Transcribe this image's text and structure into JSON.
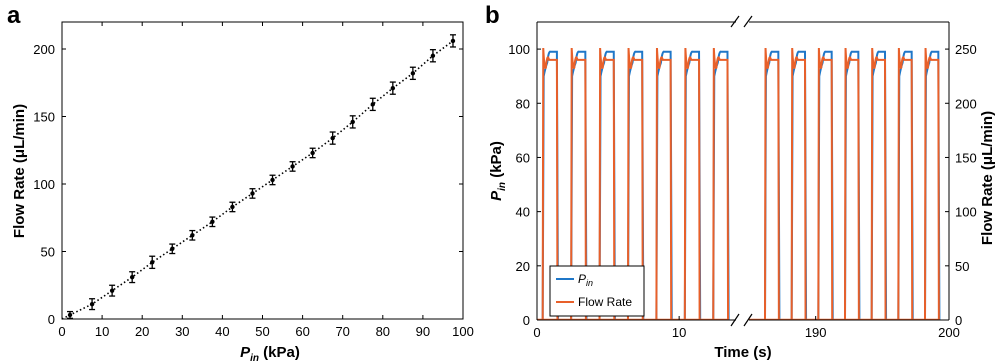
{
  "chart_data": [
    {
      "panel_label": "a",
      "type": "scatter",
      "xlabel_main": "P",
      "xlabel_sub": "in",
      "xlabel_unit": " (kPa)",
      "ylabel": "Flow Rate (μL/min)",
      "xlim": [
        0,
        100
      ],
      "ylim": [
        0,
        220
      ],
      "xticks": [
        0,
        10,
        20,
        30,
        40,
        50,
        60,
        70,
        80,
        90,
        100
      ],
      "yticks": [
        0,
        50,
        100,
        150,
        200
      ],
      "x": [
        2,
        7.5,
        12.5,
        17.5,
        22.5,
        27.5,
        32.5,
        37.5,
        42.5,
        47.5,
        52.5,
        57.5,
        62.5,
        67.5,
        72.5,
        77.5,
        82.5,
        87.5,
        92.5,
        97.5
      ],
      "y": [
        3,
        11,
        21,
        31,
        42,
        52,
        62,
        72,
        83,
        93,
        103,
        113,
        123,
        134,
        146,
        159,
        171,
        182,
        195,
        206
      ],
      "err": [
        2.5,
        4,
        4,
        4,
        4.5,
        3.5,
        3.5,
        3.5,
        3.5,
        3.5,
        3.5,
        3.5,
        3.5,
        4.5,
        4.5,
        4.5,
        4.5,
        4.5,
        4.5,
        4.5
      ],
      "fit_line": "dotted",
      "grid": false
    },
    {
      "panel_label": "b",
      "type": "line",
      "xlabel": "Time (s)",
      "ylabel_left_main": "P",
      "ylabel_left_sub": "in",
      "ylabel_left_unit": " (kPa)",
      "ylabel_right": "Flow Rate (μL/min)",
      "xticks": [
        "0",
        "10",
        "190",
        "200"
      ],
      "broken_axis": {
        "left_segment": [
          0,
          14
        ],
        "right_segment": [
          185,
          200
        ]
      },
      "ylim_left": [
        0,
        110
      ],
      "ylim_right": [
        0,
        275
      ],
      "yticks_left": [
        0,
        20,
        40,
        60,
        80,
        100
      ],
      "yticks_right": [
        0,
        50,
        100,
        150,
        200,
        250
      ],
      "pulse_starts_left": [
        0.4,
        2.4,
        4.4,
        6.4,
        8.4,
        10.4,
        12.4
      ],
      "pulse_starts_right": [
        186.2,
        188.2,
        190.2,
        192.2,
        194.2,
        196.2,
        198.2
      ],
      "pulse_width_s": 1.0,
      "pin_plateau_kPa": 100,
      "flow_peak_uLmin": 251,
      "flow_plateau_uLmin": 240,
      "series": [
        {
          "name_main": "P",
          "name_sub": "in",
          "color": "#1f77c8"
        },
        {
          "name": "Flow Rate",
          "color": "#e8602a"
        }
      ],
      "legend_position": "bottom-left",
      "grid": false
    }
  ]
}
